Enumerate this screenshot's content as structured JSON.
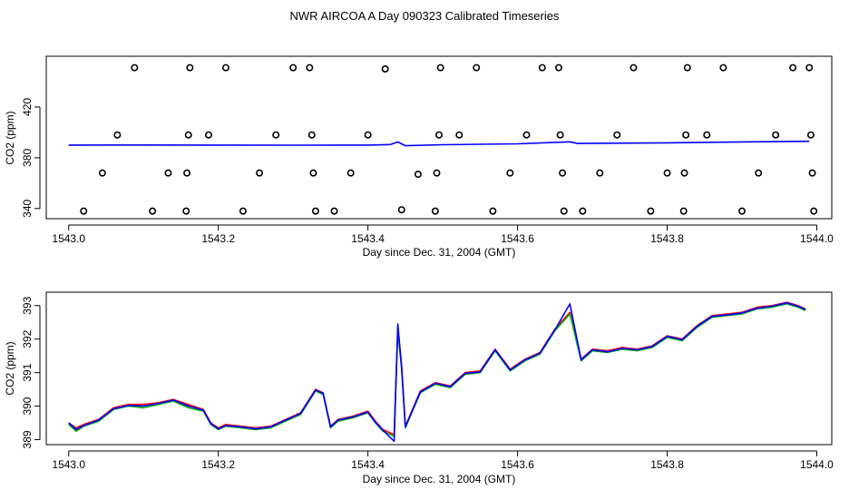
{
  "title": "NWR AIRCOA A  Day 090323  Calibrated Timeseries",
  "colors": {
    "red": "#ff0000",
    "green": "#00b000",
    "blue": "#0000ff",
    "ink": "#000000"
  },
  "chart_data": [
    {
      "type": "scatter+line",
      "name": "top-panel",
      "xlabel": "Day since Dec. 31, 2004 (GMT)",
      "ylabel": "CO2 (ppm)",
      "xlim": [
        1542.97,
        1544.02
      ],
      "ylim": [
        332,
        460
      ],
      "xticks": [
        1543.0,
        1543.2,
        1543.4,
        1543.6,
        1543.8,
        1544.0
      ],
      "xtick_labels": [
        "1543.0",
        "1543.2",
        "1543.4",
        "1543.6",
        "1543.8",
        "1544.0"
      ],
      "yticks": [
        340,
        380,
        420
      ],
      "ytick_labels": [
        "340",
        "380",
        "420"
      ],
      "calibration_points": [
        {
          "x": 1543.02,
          "y": 338
        },
        {
          "x": 1543.045,
          "y": 368
        },
        {
          "x": 1543.065,
          "y": 398
        },
        {
          "x": 1543.088,
          "y": 451
        },
        {
          "x": 1543.112,
          "y": 338
        },
        {
          "x": 1543.133,
          "y": 368
        },
        {
          "x": 1543.157,
          "y": 338
        },
        {
          "x": 1543.158,
          "y": 368
        },
        {
          "x": 1543.16,
          "y": 398
        },
        {
          "x": 1543.162,
          "y": 451
        },
        {
          "x": 1543.187,
          "y": 398
        },
        {
          "x": 1543.21,
          "y": 451
        },
        {
          "x": 1543.233,
          "y": 338
        },
        {
          "x": 1543.255,
          "y": 368
        },
        {
          "x": 1543.277,
          "y": 398
        },
        {
          "x": 1543.3,
          "y": 451
        },
        {
          "x": 1543.322,
          "y": 451
        },
        {
          "x": 1543.325,
          "y": 398
        },
        {
          "x": 1543.327,
          "y": 368
        },
        {
          "x": 1543.33,
          "y": 338
        },
        {
          "x": 1543.355,
          "y": 338
        },
        {
          "x": 1543.377,
          "y": 368
        },
        {
          "x": 1543.4,
          "y": 398
        },
        {
          "x": 1543.423,
          "y": 450
        },
        {
          "x": 1543.445,
          "y": 339
        },
        {
          "x": 1543.467,
          "y": 367
        },
        {
          "x": 1543.49,
          "y": 338
        },
        {
          "x": 1543.492,
          "y": 368
        },
        {
          "x": 1543.495,
          "y": 398
        },
        {
          "x": 1543.497,
          "y": 451
        },
        {
          "x": 1543.522,
          "y": 398
        },
        {
          "x": 1543.545,
          "y": 451
        },
        {
          "x": 1543.567,
          "y": 338
        },
        {
          "x": 1543.59,
          "y": 368
        },
        {
          "x": 1543.612,
          "y": 398
        },
        {
          "x": 1543.633,
          "y": 451
        },
        {
          "x": 1543.655,
          "y": 451
        },
        {
          "x": 1543.657,
          "y": 398
        },
        {
          "x": 1543.66,
          "y": 368
        },
        {
          "x": 1543.662,
          "y": 338
        },
        {
          "x": 1543.687,
          "y": 338
        },
        {
          "x": 1543.71,
          "y": 368
        },
        {
          "x": 1543.733,
          "y": 398
        },
        {
          "x": 1543.755,
          "y": 451
        },
        {
          "x": 1543.778,
          "y": 338
        },
        {
          "x": 1543.8,
          "y": 368
        },
        {
          "x": 1543.822,
          "y": 338
        },
        {
          "x": 1543.823,
          "y": 368
        },
        {
          "x": 1543.825,
          "y": 398
        },
        {
          "x": 1543.827,
          "y": 451
        },
        {
          "x": 1543.853,
          "y": 398
        },
        {
          "x": 1543.875,
          "y": 451
        },
        {
          "x": 1543.9,
          "y": 338
        },
        {
          "x": 1543.922,
          "y": 368
        },
        {
          "x": 1543.945,
          "y": 398
        },
        {
          "x": 1543.968,
          "y": 451
        },
        {
          "x": 1543.99,
          "y": 451
        },
        {
          "x": 1543.992,
          "y": 398
        },
        {
          "x": 1543.994,
          "y": 368
        },
        {
          "x": 1543.996,
          "y": 338
        }
      ],
      "series": [
        {
          "name": "blue",
          "color": "#0000ff",
          "x": [
            1543.0,
            1543.1,
            1543.2,
            1543.3,
            1543.4,
            1543.43,
            1543.44,
            1543.45,
            1543.5,
            1543.6,
            1543.67,
            1543.68,
            1543.8,
            1543.9,
            1543.99
          ],
          "y": [
            390.0,
            390.1,
            390.0,
            389.9,
            390.0,
            390.4,
            392.5,
            389.5,
            390.3,
            391.0,
            392.6,
            391.3,
            391.8,
            392.5,
            393.0
          ]
        }
      ]
    },
    {
      "type": "line",
      "name": "bottom-panel",
      "xlabel": "Day since Dec. 31, 2004 (GMT)",
      "ylabel": "CO2 (ppm)",
      "xlim": [
        1542.97,
        1544.02
      ],
      "ylim": [
        388.85,
        393.4
      ],
      "xticks": [
        1543.0,
        1543.2,
        1543.4,
        1543.6,
        1543.8,
        1544.0
      ],
      "xtick_labels": [
        "1543.0",
        "1543.2",
        "1543.4",
        "1543.6",
        "1543.8",
        "1544.0"
      ],
      "yticks": [
        389,
        390,
        391,
        392,
        393
      ],
      "ytick_labels": [
        "389",
        "390",
        "391",
        "392",
        "393"
      ],
      "series": [
        {
          "name": "red",
          "color": "#ff0000",
          "x": [
            1543.0,
            1543.01,
            1543.02,
            1543.04,
            1543.06,
            1543.08,
            1543.1,
            1543.12,
            1543.14,
            1543.16,
            1543.18,
            1543.19,
            1543.2,
            1543.21,
            1543.23,
            1543.25,
            1543.27,
            1543.29,
            1543.31,
            1543.33,
            1543.34,
            1543.35,
            1543.36,
            1543.38,
            1543.4,
            1543.41,
            1543.42,
            1543.435,
            1543.44,
            1543.445,
            1543.45,
            1543.47,
            1543.49,
            1543.51,
            1543.53,
            1543.55,
            1543.57,
            1543.59,
            1543.61,
            1543.63,
            1543.65,
            1543.67,
            1543.685,
            1543.7,
            1543.72,
            1543.74,
            1543.76,
            1543.78,
            1543.8,
            1543.82,
            1543.84,
            1543.86,
            1543.88,
            1543.9,
            1543.92,
            1543.94,
            1543.96,
            1543.975,
            1543.985
          ],
          "y": [
            389.5,
            389.35,
            389.45,
            389.6,
            389.95,
            390.05,
            390.05,
            390.1,
            390.2,
            390.05,
            389.9,
            389.5,
            389.35,
            389.45,
            389.4,
            389.35,
            389.4,
            389.6,
            389.8,
            390.5,
            390.4,
            389.4,
            389.6,
            389.7,
            389.85,
            389.55,
            389.3,
            389.15,
            392.35,
            391.2,
            389.4,
            390.45,
            390.7,
            390.6,
            391.0,
            391.05,
            391.7,
            391.1,
            391.4,
            391.6,
            392.3,
            392.8,
            391.4,
            391.7,
            391.65,
            391.75,
            391.7,
            391.8,
            392.1,
            392.0,
            392.4,
            392.7,
            392.75,
            392.8,
            392.95,
            393.0,
            393.1,
            393.0,
            392.9
          ]
        },
        {
          "name": "green",
          "color": "#00b000",
          "x": [
            1543.0,
            1543.01,
            1543.02,
            1543.04,
            1543.06,
            1543.08,
            1543.1,
            1543.12,
            1543.14,
            1543.16,
            1543.18,
            1543.19,
            1543.2,
            1543.21,
            1543.23,
            1543.25,
            1543.27,
            1543.29,
            1543.31,
            1543.33,
            1543.34,
            1543.35,
            1543.36,
            1543.38,
            1543.4,
            1543.41,
            1543.42,
            1543.435,
            1543.44,
            1543.445,
            1543.45,
            1543.47,
            1543.49,
            1543.51,
            1543.53,
            1543.55,
            1543.57,
            1543.59,
            1543.61,
            1543.63,
            1543.65,
            1543.67,
            1543.685,
            1543.7,
            1543.72,
            1543.74,
            1543.76,
            1543.78,
            1543.8,
            1543.82,
            1543.84,
            1543.86,
            1543.88,
            1543.9,
            1543.92,
            1543.94,
            1543.96,
            1543.975,
            1543.985
          ],
          "y": [
            389.45,
            389.25,
            389.4,
            389.55,
            389.9,
            390.0,
            389.95,
            390.05,
            390.15,
            389.95,
            389.85,
            389.45,
            389.3,
            389.4,
            389.35,
            389.3,
            389.35,
            389.55,
            389.75,
            390.45,
            390.35,
            389.35,
            389.55,
            389.65,
            389.8,
            389.5,
            389.25,
            389.1,
            392.25,
            391.1,
            389.35,
            390.4,
            390.65,
            390.55,
            390.95,
            391.0,
            391.65,
            391.05,
            391.35,
            391.55,
            392.25,
            392.75,
            391.35,
            391.65,
            391.6,
            391.7,
            391.65,
            391.75,
            392.05,
            391.95,
            392.35,
            392.65,
            392.7,
            392.75,
            392.9,
            392.95,
            393.05,
            392.95,
            392.85
          ]
        },
        {
          "name": "blue",
          "color": "#0000ff",
          "x": [
            1543.0,
            1543.01,
            1543.02,
            1543.04,
            1543.06,
            1543.08,
            1543.1,
            1543.12,
            1543.14,
            1543.16,
            1543.18,
            1543.19,
            1543.2,
            1543.21,
            1543.23,
            1543.25,
            1543.27,
            1543.29,
            1543.31,
            1543.33,
            1543.34,
            1543.35,
            1543.36,
            1543.38,
            1543.4,
            1543.41,
            1543.42,
            1543.435,
            1543.44,
            1543.445,
            1543.45,
            1543.47,
            1543.49,
            1543.51,
            1543.53,
            1543.55,
            1543.57,
            1543.59,
            1543.61,
            1543.63,
            1543.65,
            1543.67,
            1543.685,
            1543.7,
            1543.72,
            1543.74,
            1543.76,
            1543.78,
            1543.8,
            1543.82,
            1543.84,
            1543.86,
            1543.88,
            1543.9,
            1543.92,
            1543.94,
            1543.96,
            1543.975,
            1543.985
          ],
          "y": [
            389.5,
            389.3,
            389.42,
            389.58,
            389.92,
            390.02,
            390.0,
            390.08,
            390.18,
            390.0,
            389.88,
            389.48,
            389.32,
            389.42,
            389.38,
            389.32,
            389.38,
            389.58,
            389.78,
            390.48,
            390.38,
            389.38,
            389.58,
            389.68,
            389.82,
            389.52,
            389.28,
            388.95,
            392.45,
            391.15,
            389.38,
            390.42,
            390.68,
            390.58,
            390.98,
            391.02,
            391.68,
            391.08,
            391.38,
            391.58,
            392.28,
            393.05,
            391.38,
            391.68,
            391.62,
            391.72,
            391.68,
            391.78,
            392.08,
            391.98,
            392.38,
            392.68,
            392.72,
            392.78,
            392.92,
            392.98,
            393.08,
            392.98,
            392.88
          ]
        }
      ]
    }
  ]
}
